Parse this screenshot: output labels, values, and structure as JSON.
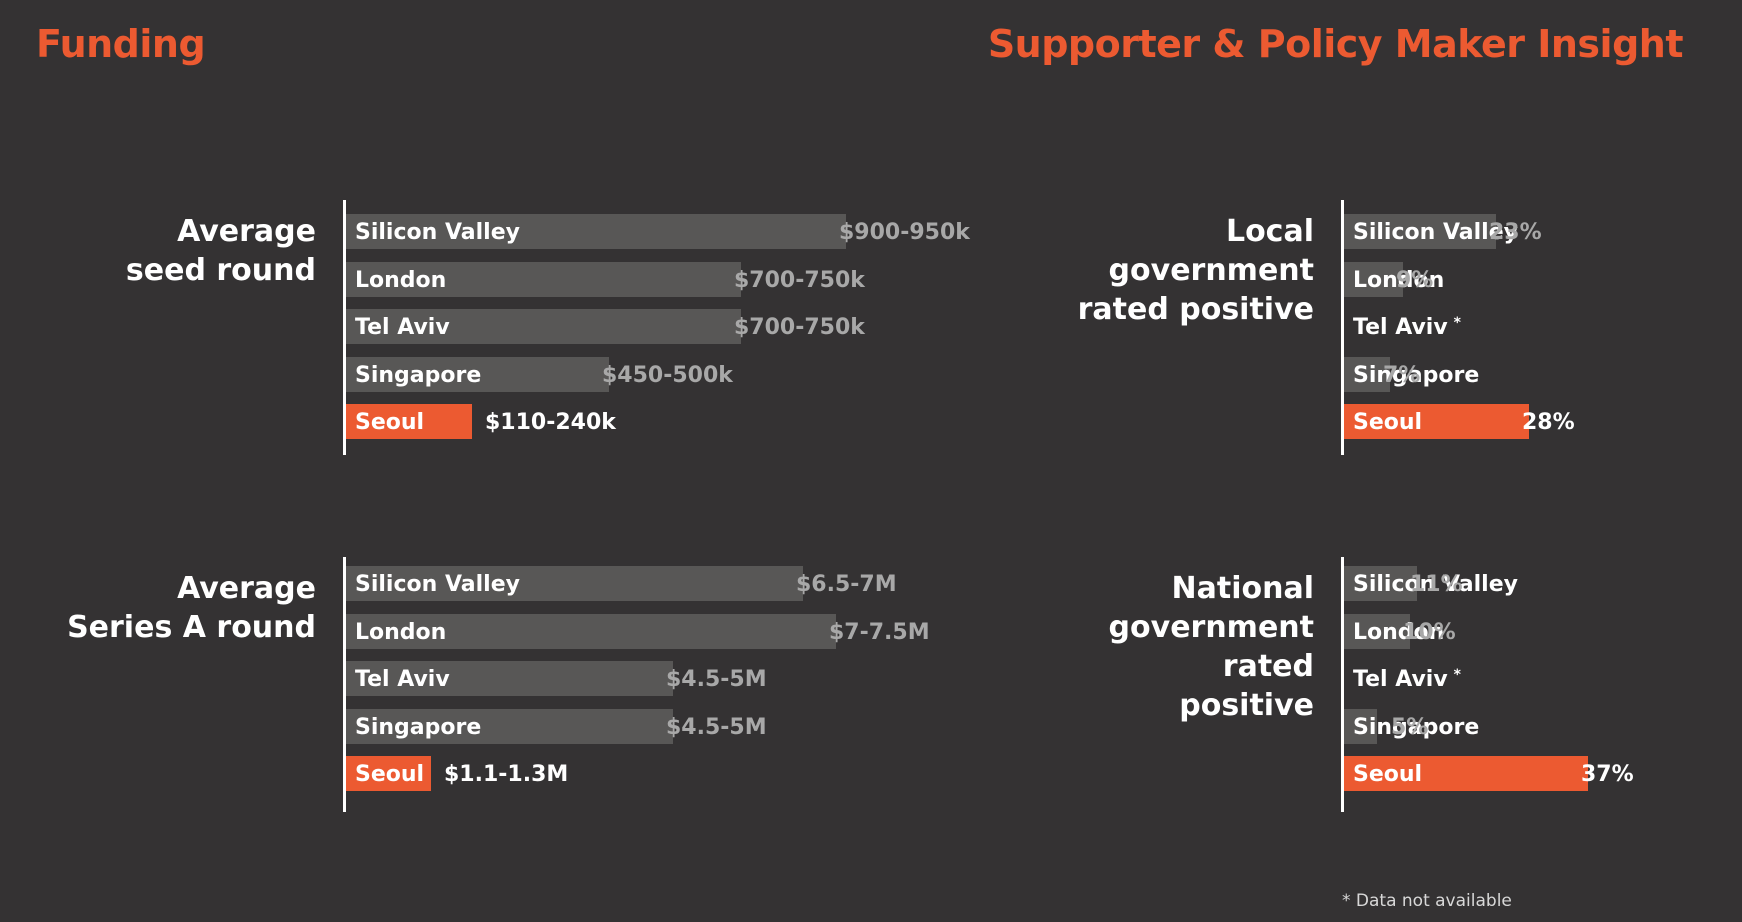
{
  "headings": {
    "left": "Funding",
    "right": "Supporter & Policy Maker Insight"
  },
  "colors": {
    "background": "#343233",
    "accent": "#ec5a31",
    "bar": "#585756",
    "muted_text": "#a8a8a8",
    "text": "#ffffff"
  },
  "footnote": "* Data not available",
  "chart_data": [
    {
      "type": "bar",
      "title": "Average\nseed round",
      "unit": "USD",
      "categories": [
        "Silicon Valley",
        "London",
        "Tel Aviv",
        "Singapore",
        "Seoul"
      ],
      "labels": [
        "$900-950k",
        "$700-750k",
        "$700-750k",
        "$450-500k",
        "$110-240k"
      ],
      "ranges": [
        [
          900000,
          950000
        ],
        [
          700000,
          750000
        ],
        [
          700000,
          750000
        ],
        [
          450000,
          500000
        ],
        [
          110000,
          240000
        ]
      ],
      "values": [
        950000,
        750000,
        750000,
        500000,
        240000
      ],
      "xlim": [
        0,
        950000
      ],
      "highlight": "Seoul"
    },
    {
      "type": "bar",
      "title": "Average\nSeries A round",
      "unit": "USD",
      "categories": [
        "Silicon Valley",
        "London",
        "Tel Aviv",
        "Singapore",
        "Seoul"
      ],
      "labels": [
        "$6.5-7M",
        "$7-7.5M",
        "$4.5-5M",
        "$4.5-5M",
        "$1.1-1.3M"
      ],
      "ranges": [
        [
          6500000,
          7000000
        ],
        [
          7000000,
          7500000
        ],
        [
          4500000,
          5000000
        ],
        [
          4500000,
          5000000
        ],
        [
          1100000,
          1300000
        ]
      ],
      "values": [
        7000000,
        7500000,
        5000000,
        5000000,
        1300000
      ],
      "xlim": [
        0,
        7500000
      ],
      "highlight": "Seoul"
    },
    {
      "type": "bar",
      "title": "Local government\nrated positive",
      "unit": "%",
      "categories": [
        "Silicon Valley",
        "London",
        "Tel Aviv",
        "Singapore",
        "Seoul"
      ],
      "labels": [
        "23%",
        "9%",
        "",
        "7%",
        "28%"
      ],
      "values": [
        23,
        9,
        null,
        7,
        28
      ],
      "xlim": [
        0,
        54
      ],
      "highlight": "Seoul"
    },
    {
      "type": "bar",
      "title": "National\ngovernment\nrated\npositive",
      "unit": "%",
      "categories": [
        "Silicon Valley",
        "London",
        "Tel Aviv",
        "Singapore",
        "Seoul"
      ],
      "labels": [
        "11%",
        "10%",
        "",
        "5%",
        "37%"
      ],
      "values": [
        11,
        10,
        null,
        5,
        37
      ],
      "xlim": [
        0,
        54
      ],
      "highlight": "Seoul"
    }
  ]
}
